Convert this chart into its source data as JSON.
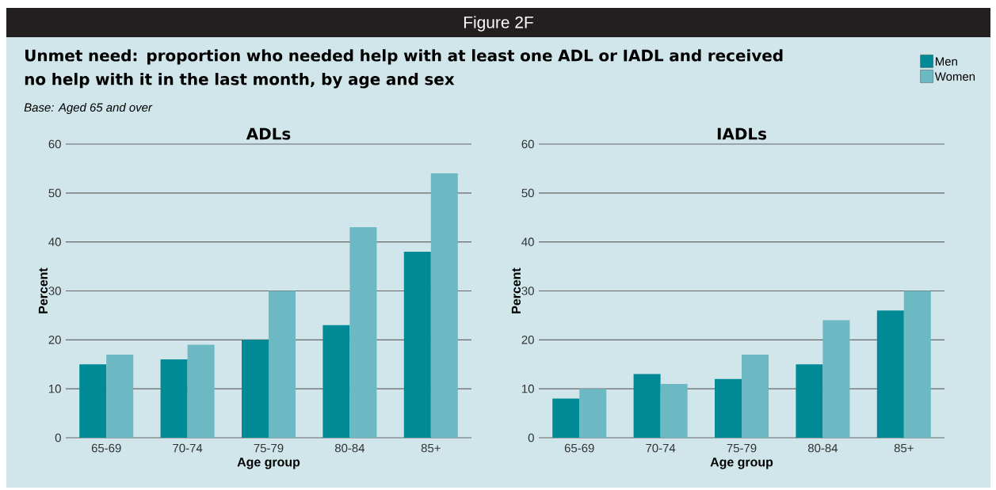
{
  "chart_data": [
    {
      "type": "bar",
      "title": "ADLs",
      "xlabel": "Age group",
      "ylabel": "Percent",
      "annotations": [
        "Figure 2F",
        "Unmet need: proportion who needed help with at least one ADL or IADL and received no help with it in the last month, by age and sex",
        "Base: Aged 65 and over"
      ],
      "categories": [
        "65-69",
        "70-74",
        "75-79",
        "80-84",
        "85+"
      ],
      "series": [
        {
          "color": "#008a96",
          "values": [
            15,
            16,
            20,
            23,
            38
          ]
        },
        {
          "color": "#6cb8c3",
          "values": [
            17,
            19,
            30,
            43,
            54
          ]
        }
      ],
      "ylim": [
        0,
        60
      ],
      "yticks": [
        0,
        10,
        20,
        30,
        40,
        50,
        60
      ],
      "grid": "y"
    },
    {
      "type": "bar",
      "title": "IADLs",
      "xlabel": "Age group",
      "ylabel": "Percent",
      "categories": [
        "65-69",
        "70-74",
        "75-79",
        "80-84",
        "85+"
      ],
      "series": [
        {
          "name": "Men",
          "color": "#008a96",
          "values": [
            8,
            13,
            12,
            15,
            26
          ]
        },
        {
          "name": "Women",
          "color": "#6cb8c3",
          "values": [
            10,
            11,
            17,
            24,
            30
          ]
        }
      ],
      "ylim": [
        0,
        60
      ],
      "yticks": [
        0,
        10,
        20,
        30,
        40,
        50,
        60
      ],
      "grid": "y",
      "legend": "top right"
    }
  ]
}
